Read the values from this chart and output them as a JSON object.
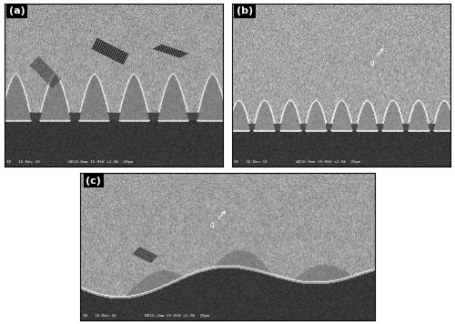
{
  "figure_width": 5.0,
  "figure_height": 3.56,
  "dpi": 100,
  "bg_color": "#ffffff",
  "panel_labels": [
    "(a)",
    "(b)",
    "(c)"
  ],
  "label_color": "white",
  "label_fontsize": 8,
  "label_bg": "black",
  "scalebar_text_a": "SE   16-Nov-10            WD14.8mm 15.0kV x2.0k  20μm",
  "scalebar_text_b": "SE   16-Nov-10            WD16.0mm 15.0kV x2.0k  20μm",
  "scalebar_text_c": "SE   16-Nov-10            WD16.2mm 15.0kV x2.0k  20μm",
  "solder_gray": 0.62,
  "solder_std": 0.07,
  "cu_gray": 0.22,
  "cu_std": 0.03,
  "imc_gray": 0.5,
  "imc_std": 0.04
}
